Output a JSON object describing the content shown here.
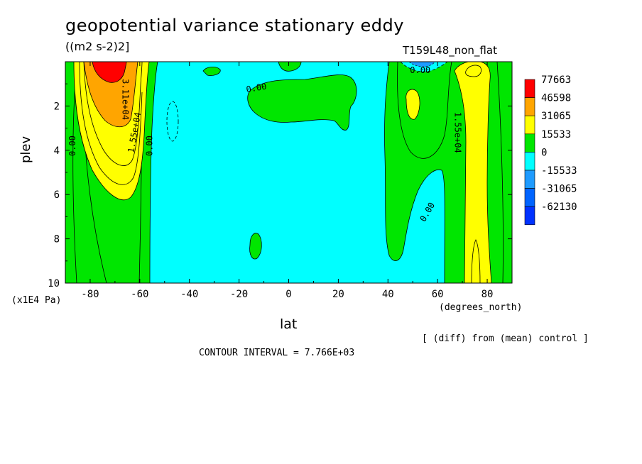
{
  "header": {
    "title": "geopotential variance stationary eddy",
    "units": "((m2 s-2)2]",
    "run_name": "T159L48_non_flat"
  },
  "footer": {
    "diff_note": "[ (diff) from (mean) control ]",
    "contour_interval": "CONTOUR INTERVAL = 7.766E+03"
  },
  "chart_data": {
    "type": "heatmap",
    "title": "geopotential variance stationary eddy",
    "xlabel": "lat",
    "ylabel": "plev",
    "x_unit": "(degrees_north)",
    "y_unit": "(x1E4 Pa)",
    "xlim": [
      -90,
      90
    ],
    "ylim": [
      10,
      0
    ],
    "x_ticks": [
      -80,
      -60,
      -40,
      -20,
      0,
      20,
      40,
      60,
      80
    ],
    "x_tick_labels": [
      "-80",
      "-60",
      "-40",
      "-20",
      "0",
      "20",
      "40",
      "60",
      "80"
    ],
    "y_ticks": [
      2,
      4,
      6,
      8,
      10
    ],
    "y_tick_labels": [
      "2",
      "4",
      "6",
      "8",
      "10"
    ],
    "legend": {
      "position": "right",
      "levels": [
        "77663",
        "46598",
        "31065",
        "15533",
        "0",
        "-15533",
        "-31065",
        "-62130"
      ],
      "colors": [
        "#ff0000",
        "#ffa500",
        "#ffff00",
        "#00e600",
        "#00ffff",
        "#1e9bff",
        "#0064ff",
        "#0032ff"
      ]
    },
    "contour_labels": [
      {
        "text": "0.00",
        "lat": -87,
        "plev": 3.8,
        "angle": -90
      },
      {
        "text": "3.11e+04",
        "lat": -66,
        "plev": 1.7,
        "angle": 90
      },
      {
        "text": "1.55e+04",
        "lat": -62,
        "plev": 3.2,
        "angle": -80
      },
      {
        "text": "0.00",
        "lat": -56,
        "plev": 3.8,
        "angle": -90
      },
      {
        "text": "0.00",
        "lat": -13,
        "plev": 1.2,
        "angle": -10
      },
      {
        "text": "0.00",
        "lat": 53,
        "plev": 0.4,
        "angle": 0
      },
      {
        "text": "1.55e+04",
        "lat": 68,
        "plev": 3.2,
        "angle": 90
      },
      {
        "text": "0.00",
        "lat": 56,
        "plev": 6.8,
        "angle": -60
      }
    ]
  }
}
